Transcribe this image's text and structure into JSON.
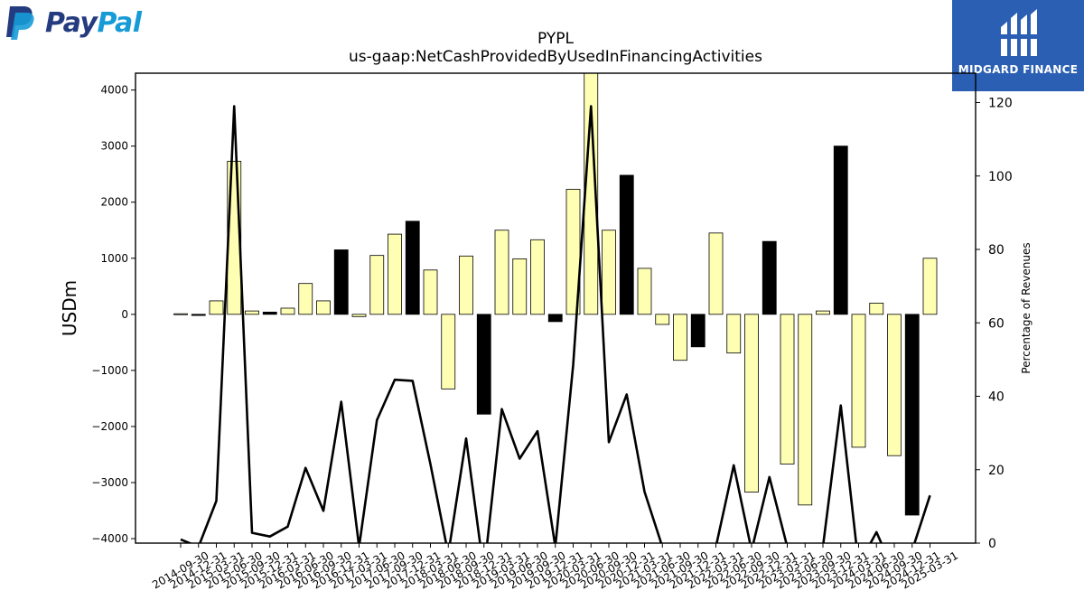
{
  "logos": {
    "paypal": {
      "part1": "Pay",
      "part2": "Pal",
      "color1": "#253b80",
      "color2": "#179bd7"
    },
    "midgard": {
      "text": "MIDGARD FINANCE",
      "background": "#2b5fb3"
    }
  },
  "chart_data": {
    "type": "bar",
    "title": "PYPL",
    "subtitle": "us-gaap:NetCashProvidedByUsedInFinancingActivities",
    "ylabel": "USDm",
    "y2label": "Percentage of Revenues",
    "ylim": [
      -4080,
      4300
    ],
    "y2lim": [
      0,
      128
    ],
    "yticks": [
      -4000,
      -3000,
      -2000,
      -1000,
      0,
      1000,
      2000,
      3000,
      4000
    ],
    "y2ticks": [
      0,
      20,
      40,
      60,
      80,
      100,
      120
    ],
    "categories": [
      "2014-09-30",
      "2014-12-31",
      "2015-03-31",
      "2015-06-30",
      "2015-09-30",
      "2015-12-31",
      "2016-03-31",
      "2016-06-30",
      "2016-09-30",
      "2016-12-31",
      "2017-03-31",
      "2017-06-30",
      "2017-09-30",
      "2017-12-31",
      "2018-03-31",
      "2018-06-30",
      "2018-09-30",
      "2018-12-31",
      "2019-03-31",
      "2019-06-30",
      "2019-09-30",
      "2019-12-31",
      "2020-03-31",
      "2020-06-30",
      "2020-09-30",
      "2020-12-31",
      "2021-03-31",
      "2021-06-30",
      "2021-09-30",
      "2021-12-31",
      "2022-03-31",
      "2022-06-30",
      "2022-09-30",
      "2022-12-31",
      "2023-03-31",
      "2023-06-30",
      "2023-09-30",
      "2023-12-31",
      "2024-03-31",
      "2024-06-30",
      "2024-09-30",
      "2024-12-31",
      "2025-03-31"
    ],
    "series": [
      {
        "kind": "bar",
        "values": [
          10,
          -20,
          240,
          2730,
          60,
          40,
          110,
          550,
          240,
          1150,
          -40,
          1050,
          1430,
          1660,
          790,
          -1330,
          1040,
          -1780,
          1500,
          990,
          1330,
          -130,
          2230,
          4900,
          1500,
          2480,
          820,
          -180,
          -820,
          -580,
          1450,
          -690,
          -3170,
          1300,
          -2670,
          -3400,
          60,
          3000,
          -2370,
          200,
          -2520,
          -3580,
          1000
        ],
        "highlight": [
          false,
          true,
          false,
          false,
          false,
          true,
          false,
          false,
          false,
          true,
          false,
          false,
          false,
          true,
          false,
          false,
          false,
          true,
          false,
          false,
          false,
          true,
          false,
          false,
          false,
          true,
          false,
          false,
          false,
          true,
          false,
          false,
          false,
          true,
          false,
          false,
          false,
          true,
          false,
          false,
          false,
          true,
          false
        ],
        "colors": {
          "normal": "#ffffb3",
          "highlight": "#000000"
        }
      },
      {
        "kind": "line",
        "axis": "right",
        "values": [
          1,
          -1,
          11.5,
          119,
          2.8,
          1.8,
          4.5,
          20.5,
          8.8,
          38.5,
          -1,
          33.5,
          44.5,
          44.2,
          21.5,
          -3,
          28.5,
          -8,
          36.5,
          23,
          30.5,
          -1,
          48.5,
          119,
          27.5,
          40.5,
          14,
          -1,
          -5,
          -8,
          -1,
          21.2,
          -2,
          18,
          -1,
          -5,
          -1,
          37.5,
          -6,
          3,
          -8,
          -2,
          13
        ],
        "color": "#000000"
      }
    ]
  }
}
